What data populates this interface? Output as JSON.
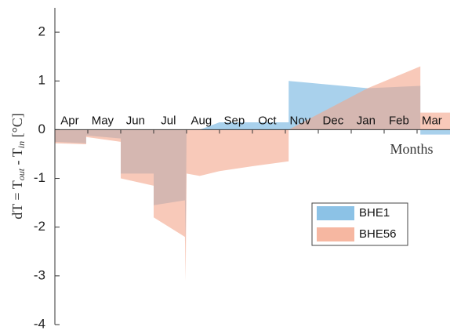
{
  "chart_data": {
    "type": "area",
    "x_label": "Months",
    "y_label": [
      "dT = T",
      "out",
      " - T",
      "in",
      " [°C]"
    ],
    "month_labels": [
      "Apr",
      "May",
      "Jun",
      "Jul",
      "Aug",
      "Sep",
      "Oct",
      "Nov",
      "Dec",
      "Jan",
      "Feb",
      "Mar"
    ],
    "x": [
      0,
      0.95,
      0.95,
      2.0,
      2.0,
      3.0,
      3.0,
      3.95,
      3.97,
      4.0,
      4.4,
      5.0,
      6.0,
      7.1,
      7.1,
      9.5,
      11.1,
      11.1,
      12
    ],
    "xlim": [
      0,
      12
    ],
    "ylim": [
      -4,
      2.5
    ],
    "yticks": [
      -4,
      -3,
      -2,
      -1,
      0,
      1,
      2
    ],
    "legend": "center-right",
    "series": [
      {
        "name": "BHE1",
        "color": "#6fb3e0",
        "values": [
          -0.25,
          -0.28,
          -0.12,
          -0.18,
          -0.9,
          -0.9,
          -1.55,
          -1.45,
          -2.35,
          0,
          0,
          0.15,
          0.15,
          0.15,
          1.0,
          0.85,
          0.9,
          -0.1,
          -0.1
        ]
      },
      {
        "name": "BHE56",
        "color": "#f4a58a",
        "values": [
          -0.28,
          -0.3,
          -0.15,
          -0.25,
          -1.0,
          -1.15,
          -1.8,
          -2.2,
          -3.1,
          -0.9,
          -0.95,
          -0.85,
          -0.75,
          -0.65,
          0,
          0.85,
          1.3,
          0.35,
          0.35
        ]
      }
    ]
  }
}
